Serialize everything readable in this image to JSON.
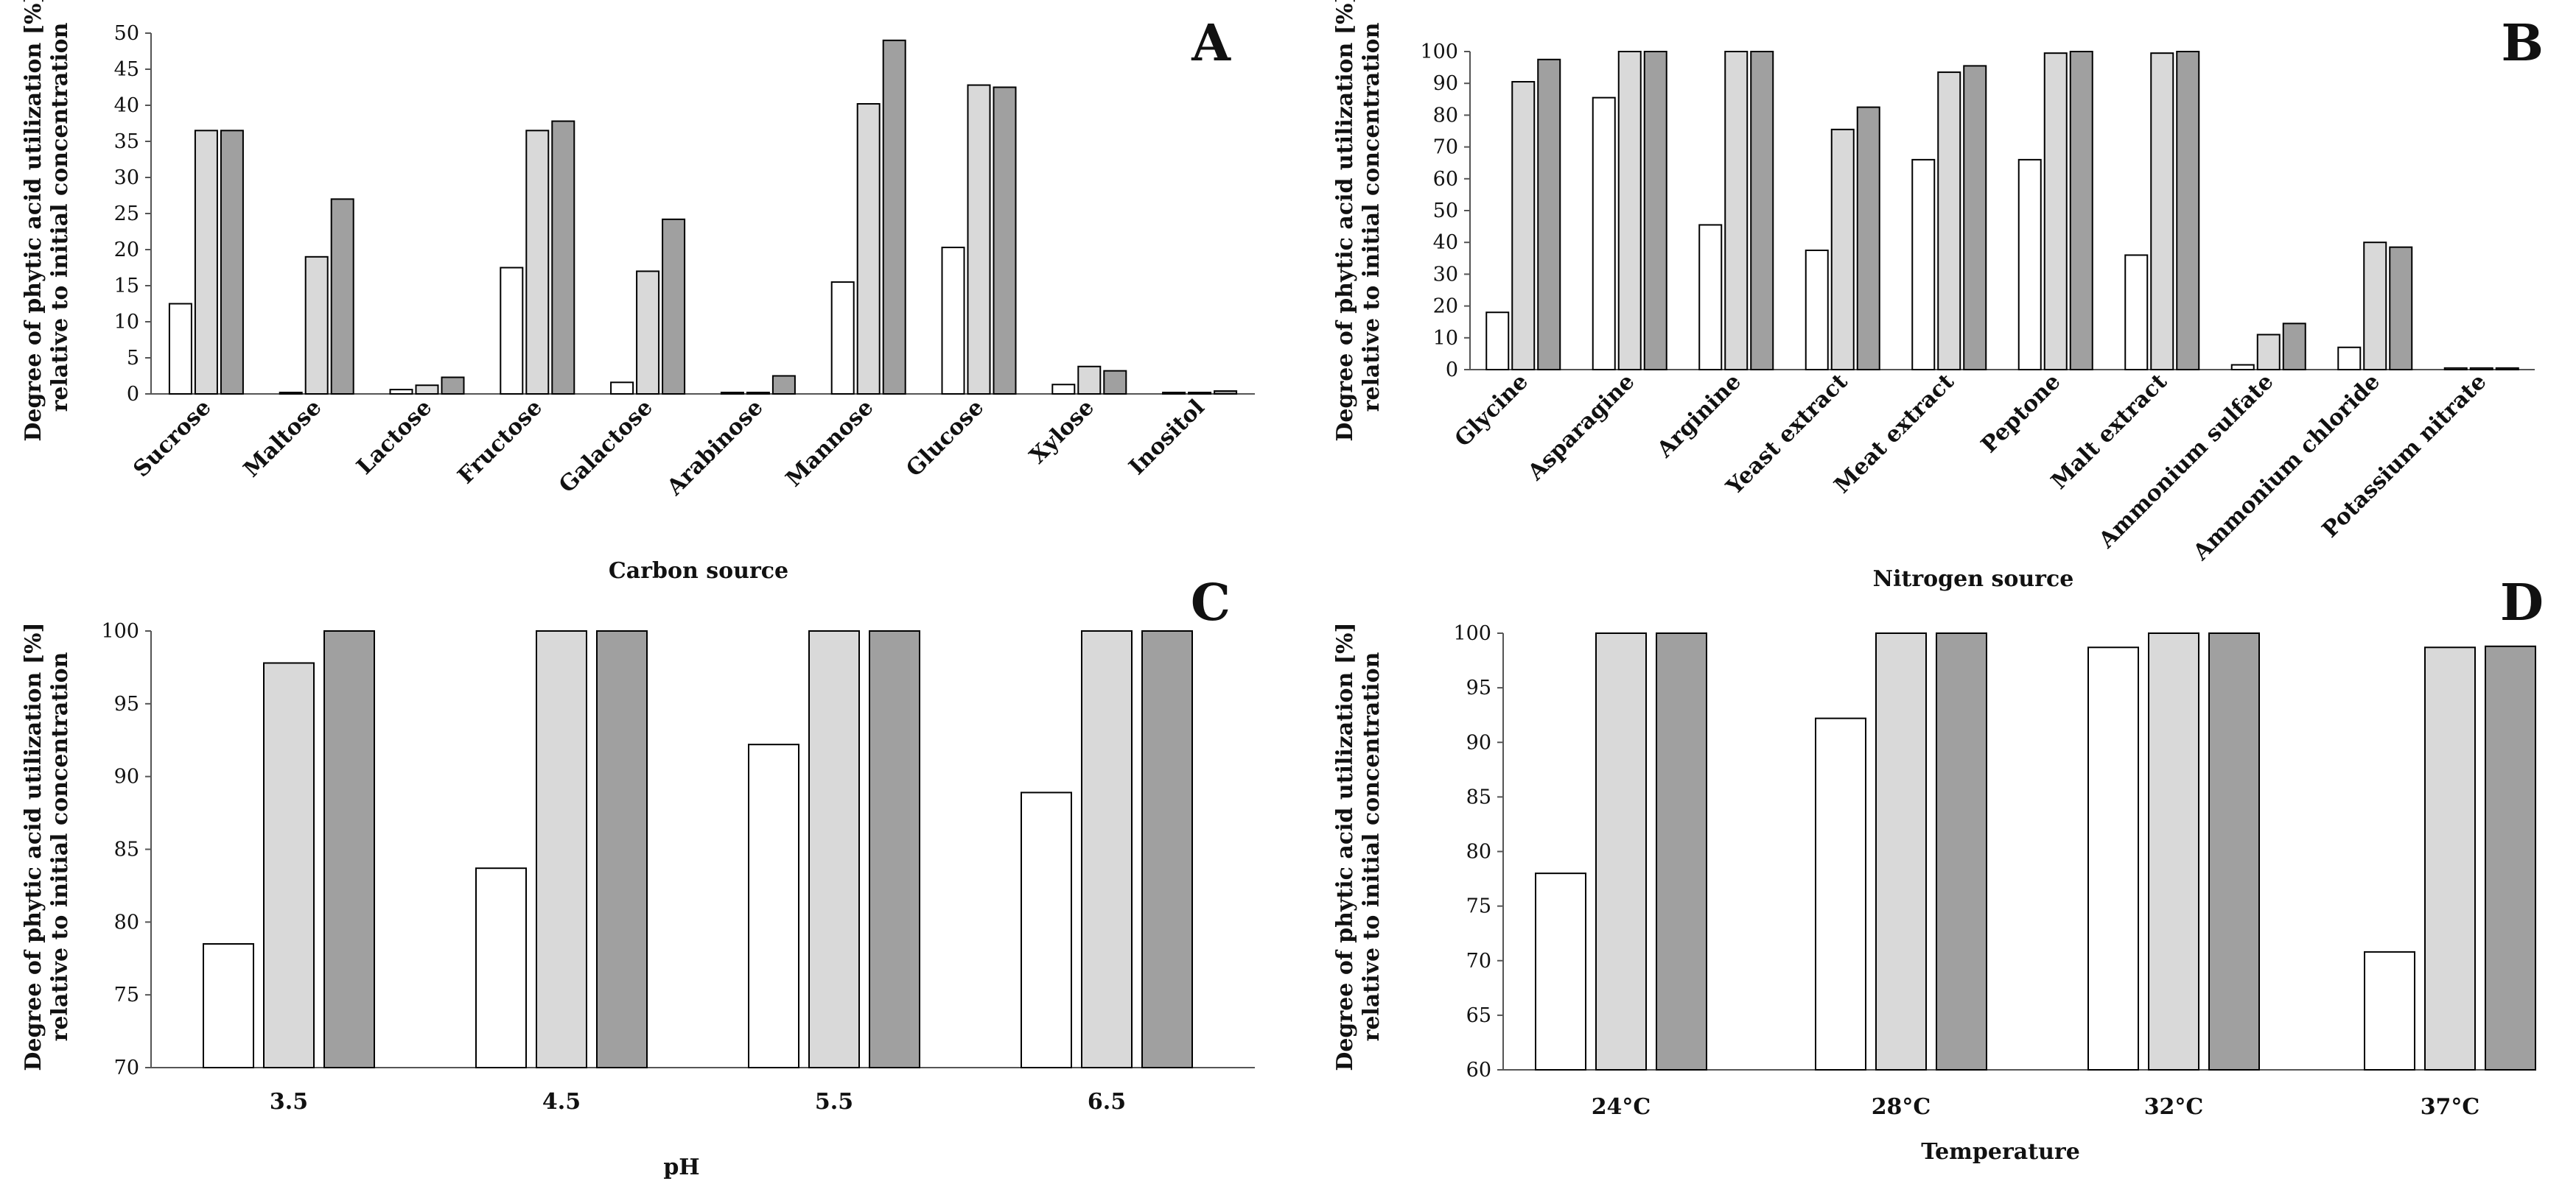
{
  "colors": {
    "series1": "#ffffff",
    "series2": "#d9d9d9",
    "series3": "#a0a0a0",
    "stroke": "#000000"
  },
  "chart_data": [
    {
      "type": "bar",
      "panel_label": "A",
      "title": "",
      "xlabel": "Carbon source",
      "ylabel_lines": [
        "Degree of phytic acid utilization [%]",
        "relative to initial concentration"
      ],
      "ylim": [
        0,
        50
      ],
      "yticks": [
        0,
        5,
        10,
        15,
        20,
        25,
        30,
        35,
        40,
        45,
        50
      ],
      "categories": [
        "Sucrose",
        "Maltose",
        "Lactose",
        "Fructose",
        "Galactose",
        "Arabinose",
        "Mannose",
        "Glucose",
        "Xylose",
        "Inositol"
      ],
      "series": [
        {
          "name": "series 1",
          "values": [
            12.5,
            0.2,
            0.6,
            17.5,
            1.6,
            0.2,
            15.5,
            20.3,
            1.3,
            0.2
          ]
        },
        {
          "name": "series 2",
          "values": [
            36.5,
            19.0,
            1.2,
            36.5,
            17.0,
            0.2,
            40.2,
            42.8,
            3.8,
            0.2
          ]
        },
        {
          "name": "series 3",
          "values": [
            36.5,
            27.0,
            2.3,
            37.8,
            24.2,
            2.5,
            49.0,
            42.5,
            3.2,
            0.4
          ]
        }
      ]
    },
    {
      "type": "bar",
      "panel_label": "B",
      "title": "",
      "xlabel": "Nitrogen source",
      "ylabel_lines": [
        "Degree of phytic acid utilization [%]",
        "relative to initial concentration"
      ],
      "ylim": [
        0,
        100
      ],
      "yticks": [
        0,
        10,
        20,
        30,
        40,
        50,
        60,
        70,
        80,
        90,
        100
      ],
      "categories": [
        "Glycine",
        "Asparagine",
        "Arginine",
        "Yeast extract",
        "Meat extract",
        "Peptone",
        "Malt extract",
        "Ammonium sulfate",
        "Ammonium chloride",
        "Potassium nitrate"
      ],
      "series": [
        {
          "name": "series 1",
          "values": [
            18,
            85.5,
            45.5,
            37.5,
            66,
            66,
            36,
            1.5,
            7,
            0.5
          ]
        },
        {
          "name": "series 2",
          "values": [
            90.5,
            100,
            100,
            75.5,
            93.5,
            99.5,
            99.5,
            11,
            40,
            0.5
          ]
        },
        {
          "name": "series 3",
          "values": [
            97.5,
            100,
            100,
            82.5,
            95.5,
            100,
            100,
            14.5,
            38.5,
            0.5
          ]
        }
      ]
    },
    {
      "type": "bar",
      "panel_label": "C",
      "title": "",
      "xlabel": "pH",
      "ylabel_lines": [
        "Degree of phytic acid utilization [%]",
        "relative to initial concentration"
      ],
      "ylim": [
        70,
        100
      ],
      "yticks": [
        70,
        75,
        80,
        85,
        90,
        95,
        100
      ],
      "categories": [
        "3.5",
        "4.5",
        "5.5",
        "6.5"
      ],
      "series": [
        {
          "name": "series 1",
          "values": [
            78.5,
            83.7,
            92.2,
            88.9
          ]
        },
        {
          "name": "series 2",
          "values": [
            97.8,
            100,
            100,
            100
          ]
        },
        {
          "name": "series 3",
          "values": [
            100,
            100,
            100,
            100
          ]
        }
      ]
    },
    {
      "type": "bar",
      "panel_label": "D",
      "title": "",
      "xlabel": "Temperature",
      "ylabel_lines": [
        "Degree of phytic acid utilization [%]",
        "relative to initial concentration"
      ],
      "ylim": [
        60,
        100
      ],
      "yticks": [
        60,
        65,
        70,
        75,
        80,
        85,
        90,
        95,
        100
      ],
      "categories": [
        "24°C",
        "28°C",
        "32°C",
        "37°C"
      ],
      "series": [
        {
          "name": "series 1",
          "values": [
            78,
            92.2,
            98.7,
            70.8
          ]
        },
        {
          "name": "series 2",
          "values": [
            100,
            100,
            100,
            98.7
          ]
        },
        {
          "name": "series 3",
          "values": [
            100,
            100,
            100,
            98.8
          ]
        }
      ]
    }
  ]
}
